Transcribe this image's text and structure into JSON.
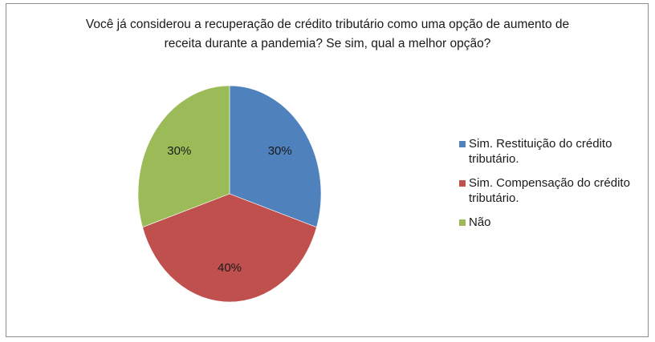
{
  "chart_data": {
    "type": "pie",
    "title": "Você já considerou a recuperação de crédito tributário como uma opção de aumento de\nreceita durante a pandemia? Se sim, qual a melhor opção?",
    "categories": [
      "Sim. Restituição do crédito tributário.",
      "Sim. Compensação do crédito tributário.",
      "Não"
    ],
    "values": [
      30,
      40,
      30
    ],
    "data_labels": [
      "30%",
      "40%",
      "30%"
    ],
    "colors": [
      "#4f81bd",
      "#c0504d",
      "#9bbb59"
    ],
    "start_angle_deg": 0,
    "direction": "clockwise",
    "legend": {
      "position": "right",
      "entries": [
        {
          "label": "Sim. Restituição do crédito\ntributário.",
          "color": "#4f81bd"
        },
        {
          "label": "Sim. Compensação do crédito\ntributário.",
          "color": "#c0504d"
        },
        {
          "label": "Não",
          "color": "#9bbb59"
        }
      ]
    }
  }
}
